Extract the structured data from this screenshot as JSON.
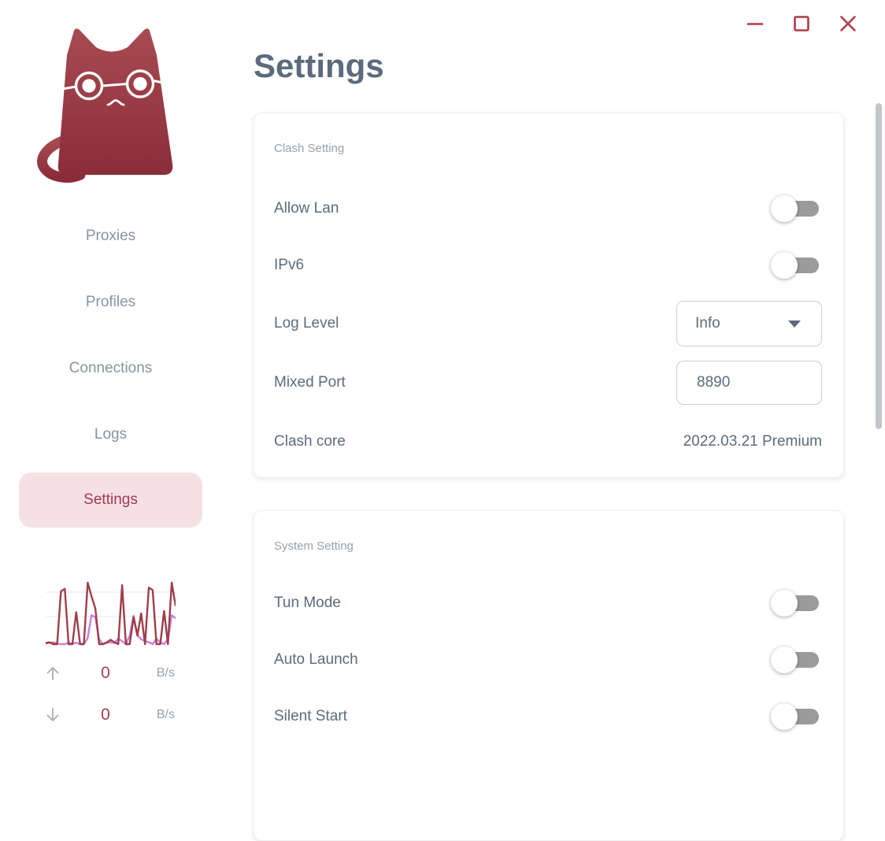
{
  "window": {
    "controls": [
      {
        "name": "minimize"
      },
      {
        "name": "maximize"
      },
      {
        "name": "close"
      }
    ],
    "control_color": "#b03a46"
  },
  "sidebar": {
    "logo_name": "clash-cat-logo",
    "items": [
      {
        "label": "Proxies",
        "active": false
      },
      {
        "label": "Profiles",
        "active": false
      },
      {
        "label": "Connections",
        "active": false
      },
      {
        "label": "Logs",
        "active": false
      },
      {
        "label": "Settings",
        "active": true
      }
    ],
    "traffic": {
      "up": {
        "icon": "arrow-up-icon",
        "value": "0",
        "unit": "B/s"
      },
      "down": {
        "icon": "arrow-down-icon",
        "value": "0",
        "unit": "B/s"
      }
    }
  },
  "main": {
    "title": "Settings",
    "cards": [
      {
        "section_label": "Clash Setting",
        "rows": [
          {
            "label": "Allow Lan",
            "control": "toggle",
            "state": "off"
          },
          {
            "label": "IPv6",
            "control": "toggle",
            "state": "off"
          },
          {
            "label": "Log Level",
            "control": "select",
            "value": "Info"
          },
          {
            "label": "Mixed Port",
            "control": "input",
            "value": "8890"
          },
          {
            "label": "Clash core",
            "control": "text",
            "value": "2022.03.21 Premium"
          }
        ]
      },
      {
        "section_label": "System Setting",
        "rows": [
          {
            "label": "Tun Mode",
            "control": "toggle",
            "state": "off"
          },
          {
            "label": "Auto Launch",
            "control": "toggle",
            "state": "off"
          },
          {
            "label": "Silent Start",
            "control": "toggle",
            "state": "off"
          }
        ]
      }
    ]
  },
  "chart_data": {
    "type": "line",
    "title": "sidebar traffic sparkline (no axis labels shown)",
    "ylim": [
      0,
      100
    ],
    "grid": true,
    "legend": "none",
    "series": [
      {
        "name": "series-purple",
        "color": "#c97fd8",
        "values": [
          1,
          2,
          3,
          1,
          0,
          0,
          2,
          1,
          2,
          0,
          0,
          10,
          47,
          44,
          8,
          0,
          2,
          3,
          2,
          9,
          5,
          0,
          14,
          46,
          15,
          8,
          5,
          3,
          0,
          9,
          3,
          0,
          8,
          47,
          42
        ]
      },
      {
        "name": "series-red",
        "color": "#9e3e49",
        "values": [
          2,
          3,
          0,
          0,
          86,
          90,
          0,
          0,
          52,
          0,
          0,
          100,
          78,
          58,
          0,
          0,
          3,
          7,
          3,
          0,
          96,
          0,
          0,
          44,
          14,
          50,
          0,
          92,
          88,
          0,
          0,
          54,
          0,
          100,
          62
        ]
      }
    ]
  },
  "colors": {
    "accent_red": "#b03a46",
    "nav_active_bg": "#f5e1e4",
    "nav_active_text": "#a4384e",
    "text_primary": "#5b6b7c",
    "text_muted": "#9aa1a9",
    "nav_text": "#8793a2",
    "toggle_track_off": "#9b9b9b",
    "chart_red": "#9e3e49",
    "chart_purple": "#c97fd8",
    "scrollbar": "#c3c7cc",
    "cat_gradient_top": "#a84b52",
    "cat_gradient_bottom": "#8a2d3a"
  }
}
